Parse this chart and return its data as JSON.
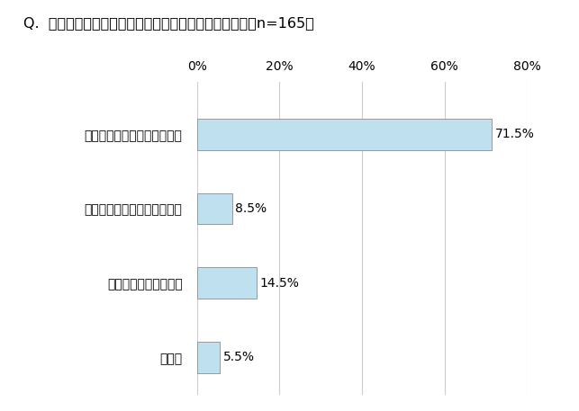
{
  "title": "Q.  エアコンの不具合を感じたタイミング【単数回答】（n=165）",
  "categories": [
    "夏になって冷房を使い始めて",
    "冬になって暖房を使い始めて",
    "毎日使っているうちに",
    "その他"
  ],
  "values": [
    71.5,
    8.5,
    14.5,
    5.5
  ],
  "labels": [
    "71.5%",
    "8.5%",
    "14.5%",
    "5.5%"
  ],
  "bar_color": "#BFE0EE",
  "bar_edge_color": "#999999",
  "xlim": [
    0,
    80
  ],
  "xticks": [
    0,
    20,
    40,
    60,
    80
  ],
  "xticklabels": [
    "0%",
    "20%",
    "40%",
    "60%",
    "80%"
  ],
  "background_color": "#ffffff",
  "title_fontsize": 11.5,
  "label_fontsize": 10,
  "tick_fontsize": 10,
  "value_fontsize": 10,
  "bar_height": 0.42
}
